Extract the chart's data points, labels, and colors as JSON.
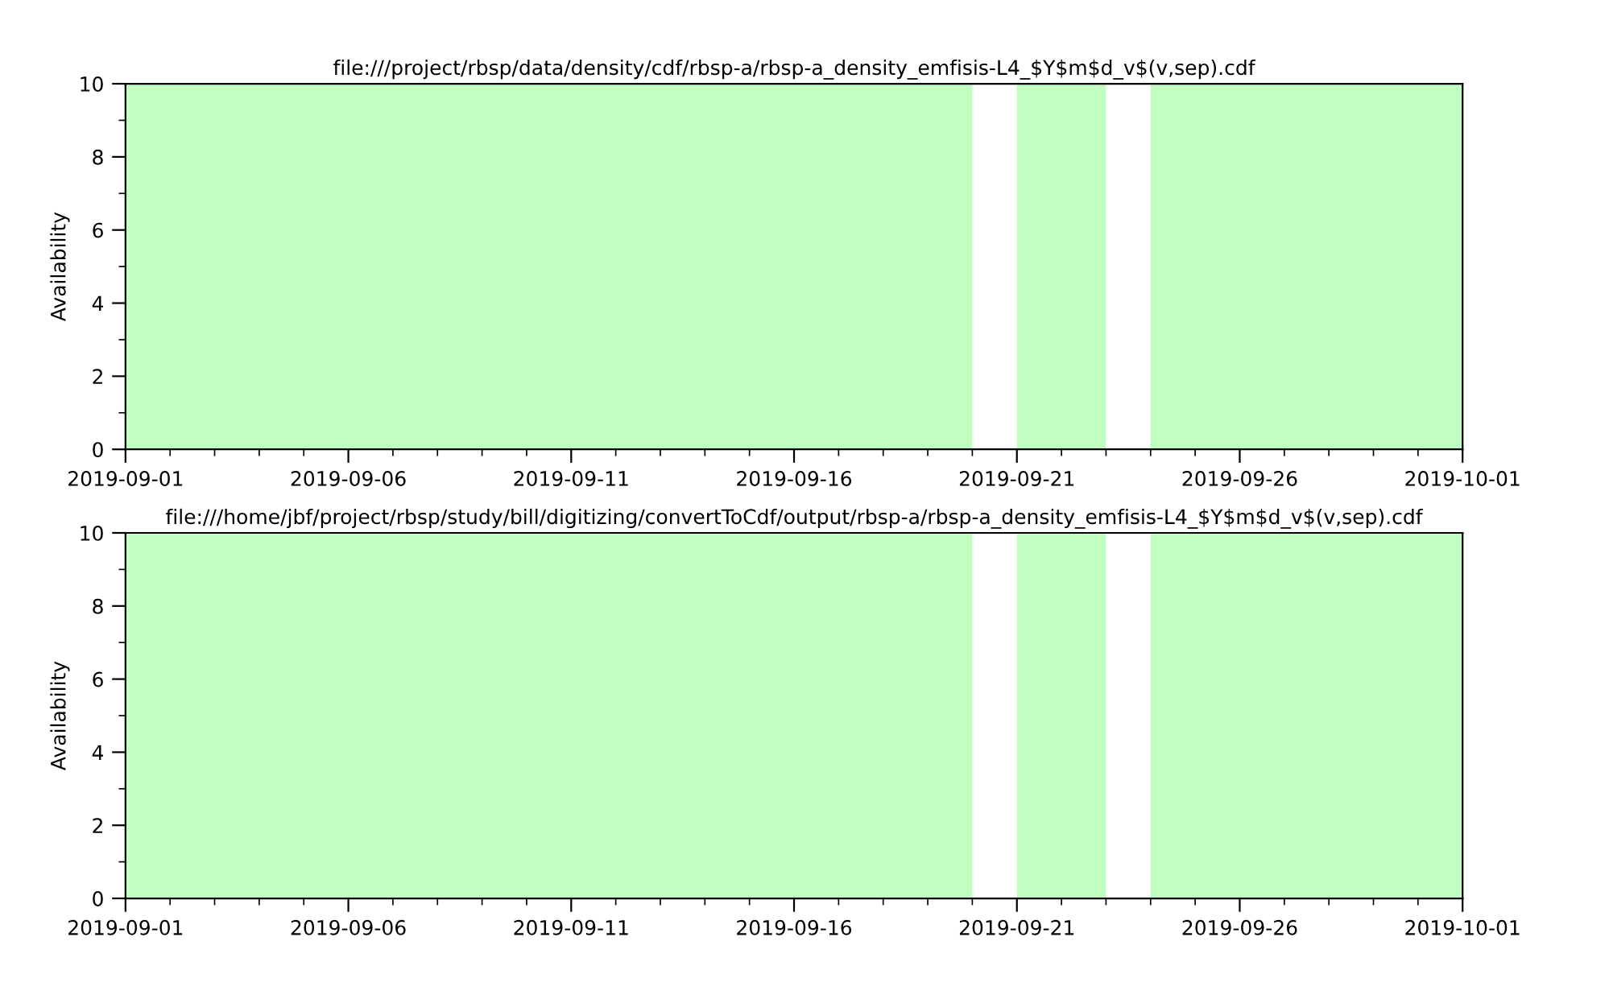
{
  "chart_data": [
    {
      "type": "area",
      "title": "file:///project/rbsp/data/density/cdf/rbsp-a/rbsp-a_density_emfisis-L4_$Y$m$d_v$(v,sep).cdf",
      "ylabel": "Availability",
      "x": [
        "2019-09-01",
        "2019-09-20",
        "2019-09-20T12:00",
        "2019-09-21",
        "2019-09-23",
        "2019-09-23T12:00",
        "2019-09-24",
        "2019-10-01"
      ],
      "series": [
        {
          "color": "#c0ffc0",
          "values": [
            10,
            10,
            null,
            10,
            10,
            null,
            10,
            10
          ]
        }
      ],
      "xlim": [
        "2019-09-01",
        "2019-10-01"
      ],
      "xticks": [
        "2019-09-01",
        "2019-09-06",
        "2019-09-11",
        "2019-09-16",
        "2019-09-21",
        "2019-09-26",
        "2019-10-01"
      ],
      "ylim": [
        0,
        10
      ],
      "yticks": [
        0,
        2,
        4,
        6,
        8,
        10
      ],
      "grid": false
    },
    {
      "type": "area",
      "title": "file:///home/jbf/project/rbsp/study/bill/digitizing/convertToCdf/output/rbsp-a/rbsp-a_density_emfisis-L4_$Y$m$d_v$(v,sep).cdf",
      "ylabel": "Availability",
      "x": [
        "2019-09-01",
        "2019-09-20",
        "2019-09-20T12:00",
        "2019-09-21",
        "2019-09-23",
        "2019-09-23T12:00",
        "2019-09-24",
        "2019-10-01"
      ],
      "series": [
        {
          "color": "#c0ffc0",
          "values": [
            10,
            10,
            null,
            10,
            10,
            null,
            10,
            10
          ]
        }
      ],
      "xlim": [
        "2019-09-01",
        "2019-10-01"
      ],
      "xticks": [
        "2019-09-01",
        "2019-09-06",
        "2019-09-11",
        "2019-09-16",
        "2019-09-21",
        "2019-09-26",
        "2019-10-01"
      ],
      "ylim": [
        0,
        10
      ],
      "yticks": [
        0,
        2,
        4,
        6,
        8,
        10
      ],
      "grid": false
    }
  ]
}
